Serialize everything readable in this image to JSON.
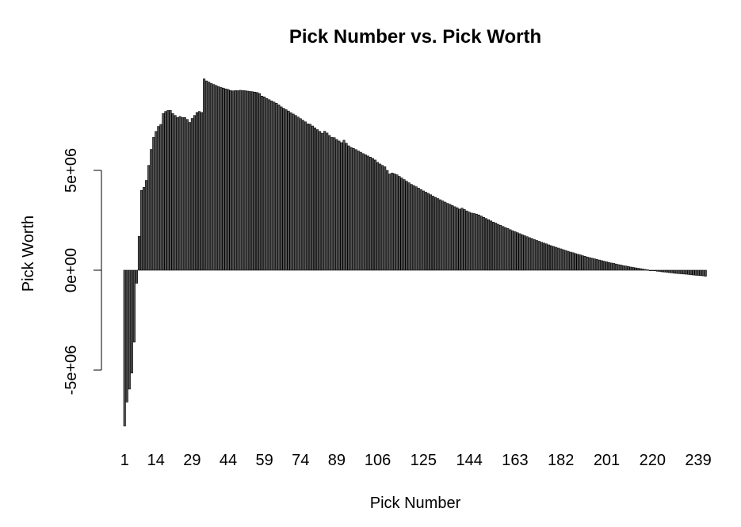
{
  "chart_data": {
    "type": "bar",
    "title": "Pick Number vs. Pick Worth",
    "xlabel": "Pick Number",
    "ylabel": "Pick Worth",
    "ylim": [
      -8000000,
      10000000
    ],
    "y_ticks": [
      {
        "value": -5000000,
        "label": "-5e+06"
      },
      {
        "value": 0,
        "label": "0e+00"
      },
      {
        "value": 5000000,
        "label": "5e+06"
      }
    ],
    "x_tick_labels": [
      "1",
      "14",
      "29",
      "44",
      "59",
      "74",
      "89",
      "106",
      "125",
      "144",
      "163",
      "182",
      "201",
      "220",
      "239"
    ],
    "grid": false,
    "legend": "none",
    "bar_color": "#555555",
    "bar_border": "#000000",
    "categories": [
      1,
      2,
      3,
      4,
      5,
      6,
      7,
      8,
      9,
      10,
      11,
      12,
      13,
      14,
      15,
      16,
      17,
      18,
      19,
      20,
      21,
      22,
      23,
      24,
      25,
      26,
      27,
      28,
      29,
      30,
      31,
      32,
      33,
      34,
      35,
      36,
      37,
      38,
      39,
      40,
      41,
      42,
      43,
      44,
      45,
      46,
      47,
      48,
      49,
      50,
      51,
      52,
      53,
      54,
      55,
      56,
      57,
      58,
      59,
      60,
      61,
      62,
      63,
      64,
      65,
      66,
      67,
      68,
      69,
      70,
      71,
      72,
      73,
      74,
      75,
      76,
      77,
      78,
      79,
      80,
      81,
      82,
      83,
      84,
      85,
      86,
      87,
      88,
      89,
      90,
      91,
      92,
      93,
      94,
      95,
      96,
      97,
      98,
      99,
      100,
      101,
      102,
      103,
      104,
      105,
      106,
      107,
      108,
      109,
      110,
      111,
      112,
      113,
      114,
      115,
      116,
      117,
      118,
      119,
      120,
      121,
      122,
      123,
      124,
      125,
      126,
      127,
      128,
      129,
      130,
      131,
      132,
      133,
      134,
      135,
      136,
      137,
      138,
      139,
      140,
      141,
      142,
      143,
      144,
      145,
      146,
      147,
      148,
      149,
      150,
      151,
      152,
      153,
      154,
      155,
      156,
      157,
      158,
      159,
      160,
      161,
      162,
      163,
      164,
      165,
      166,
      167,
      168,
      169,
      170,
      171,
      172,
      173,
      174,
      175,
      176,
      177,
      178,
      179,
      180,
      181,
      182,
      183,
      184,
      185,
      186,
      187,
      188,
      189,
      190,
      191,
      192,
      193,
      194,
      195,
      196,
      197,
      198,
      199,
      200,
      201,
      202,
      203,
      204,
      205,
      206,
      207,
      208,
      209,
      210,
      211,
      212,
      213,
      214,
      215,
      216,
      217,
      218,
      219,
      220,
      221,
      222,
      223,
      224,
      225,
      226,
      227,
      228,
      229,
      230,
      231,
      232,
      233,
      234,
      235,
      236,
      237,
      238,
      239,
      240,
      241,
      242
    ],
    "values": [
      -7800000,
      -6600000,
      -5950000,
      -5150000,
      -3600000,
      -650000,
      1700000,
      4000000,
      4150000,
      4500000,
      5250000,
      6050000,
      6650000,
      6950000,
      7200000,
      7300000,
      7850000,
      7950000,
      8000000,
      8000000,
      7850000,
      7750000,
      7650000,
      7700000,
      7650000,
      7650000,
      7550000,
      7400000,
      7600000,
      7750000,
      7900000,
      7950000,
      7900000,
      9580000,
      9480000,
      9420000,
      9350000,
      9300000,
      9250000,
      9200000,
      9150000,
      9120000,
      9080000,
      9050000,
      9000000,
      8980000,
      9000000,
      8990000,
      9010000,
      9000000,
      8990000,
      8970000,
      8950000,
      8940000,
      8920000,
      8900000,
      8850000,
      8720000,
      8680000,
      8600000,
      8540000,
      8480000,
      8420000,
      8360000,
      8280000,
      8180000,
      8110000,
      8040000,
      7970000,
      7890000,
      7820000,
      7750000,
      7670000,
      7590000,
      7510000,
      7430000,
      7330000,
      7310000,
      7220000,
      7130000,
      7040000,
      6950000,
      6860000,
      6960000,
      6870000,
      6750000,
      6650000,
      6640000,
      6550000,
      6470000,
      6390000,
      6510000,
      6360000,
      6230000,
      6150000,
      6100000,
      6040000,
      5970000,
      5910000,
      5840000,
      5780000,
      5720000,
      5660000,
      5600000,
      5520000,
      5400000,
      5320000,
      5250000,
      5180000,
      5000000,
      4820000,
      4870000,
      4830000,
      4780000,
      4700000,
      4620000,
      4540000,
      4460000,
      4380000,
      4300000,
      4240000,
      4180000,
      4110000,
      4040000,
      3970000,
      3910000,
      3850000,
      3780000,
      3710000,
      3650000,
      3590000,
      3530000,
      3470000,
      3410000,
      3350000,
      3300000,
      3240000,
      3180000,
      3130000,
      3060000,
      3110000,
      3040000,
      2970000,
      2910000,
      2860000,
      2840000,
      2810000,
      2770000,
      2710000,
      2650000,
      2590000,
      2530000,
      2470000,
      2410000,
      2360000,
      2300000,
      2250000,
      2190000,
      2140000,
      2090000,
      2030000,
      1980000,
      1930000,
      1880000,
      1830000,
      1780000,
      1730000,
      1680000,
      1630000,
      1590000,
      1540000,
      1490000,
      1450000,
      1400000,
      1360000,
      1320000,
      1270000,
      1230000,
      1190000,
      1150000,
      1110000,
      1070000,
      1030000,
      990000,
      950000,
      910000,
      880000,
      840000,
      800000,
      770000,
      730000,
      700000,
      660000,
      630000,
      600000,
      570000,
      540000,
      510000,
      480000,
      450000,
      420000,
      390000,
      360000,
      340000,
      310000,
      280000,
      260000,
      230000,
      210000,
      190000,
      160000,
      140000,
      120000,
      100000,
      80000,
      60000,
      40000,
      20000,
      0,
      -20000,
      -30000,
      -50000,
      -60000,
      -80000,
      -90000,
      -100000,
      -120000,
      -130000,
      -150000,
      -160000,
      -170000,
      -180000,
      -190000,
      -200000,
      -210000,
      -230000,
      -240000,
      -250000,
      -260000,
      -270000,
      -280000,
      -300000
    ]
  }
}
